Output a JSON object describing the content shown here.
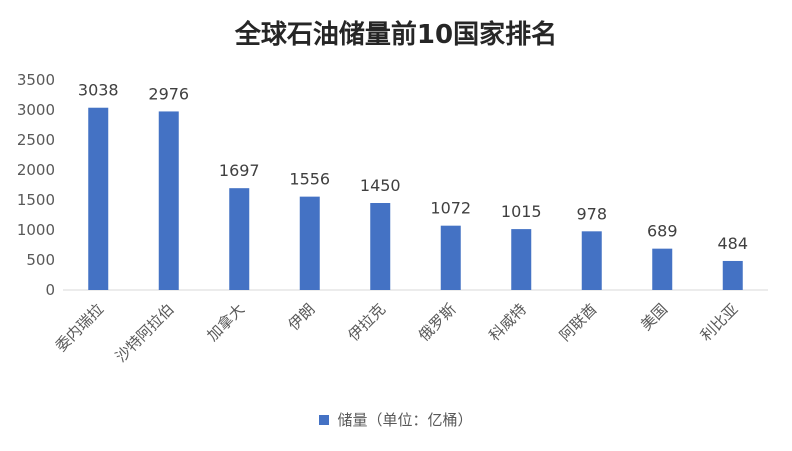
{
  "chart_data": {
    "type": "bar",
    "title": "全球石油储量前10国家排名",
    "categories": [
      "委内瑞拉",
      "沙特阿拉伯",
      "加拿大",
      "伊朗",
      "伊拉克",
      "俄罗斯",
      "科威特",
      "阿联酋",
      "美国",
      "利比亚"
    ],
    "series": [
      {
        "name": "储量（单位：亿桶）",
        "values": [
          3038,
          2976,
          1697,
          1556,
          1450,
          1072,
          1015,
          978,
          689,
          484
        ]
      }
    ],
    "ylim": [
      0,
      3500
    ],
    "yticks": [
      0,
      500,
      1000,
      1500,
      2000,
      2500,
      3000,
      3500
    ],
    "grid": false,
    "legend_position": "bottom",
    "bar_color": "#4472C4"
  }
}
